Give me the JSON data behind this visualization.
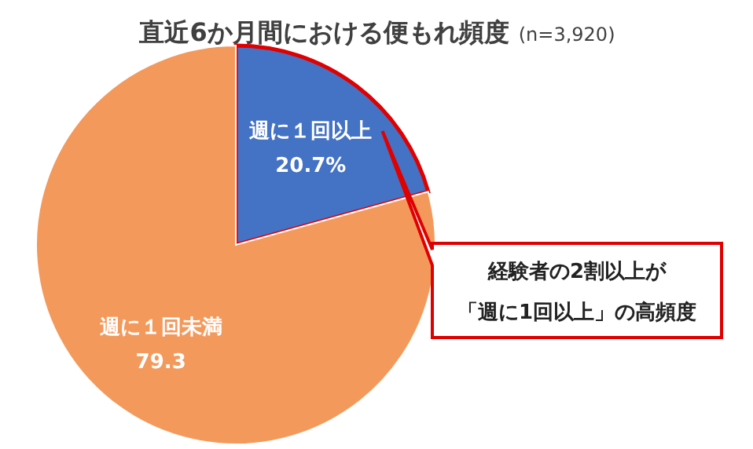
{
  "chart_data": {
    "type": "pie",
    "title": "直近6か月間における便もれ頻度",
    "subtitle": "(n=3,920)",
    "categories": [
      "週に１回以上",
      "週に１回未満"
    ],
    "values": [
      20.7,
      79.3
    ],
    "value_labels": [
      "20.7%",
      "79.3"
    ],
    "colors": [
      "#4472c4",
      "#f4995c"
    ],
    "annotations": [
      "経験者の2割以上が",
      "「週に1回以上」の高頻度"
    ]
  }
}
